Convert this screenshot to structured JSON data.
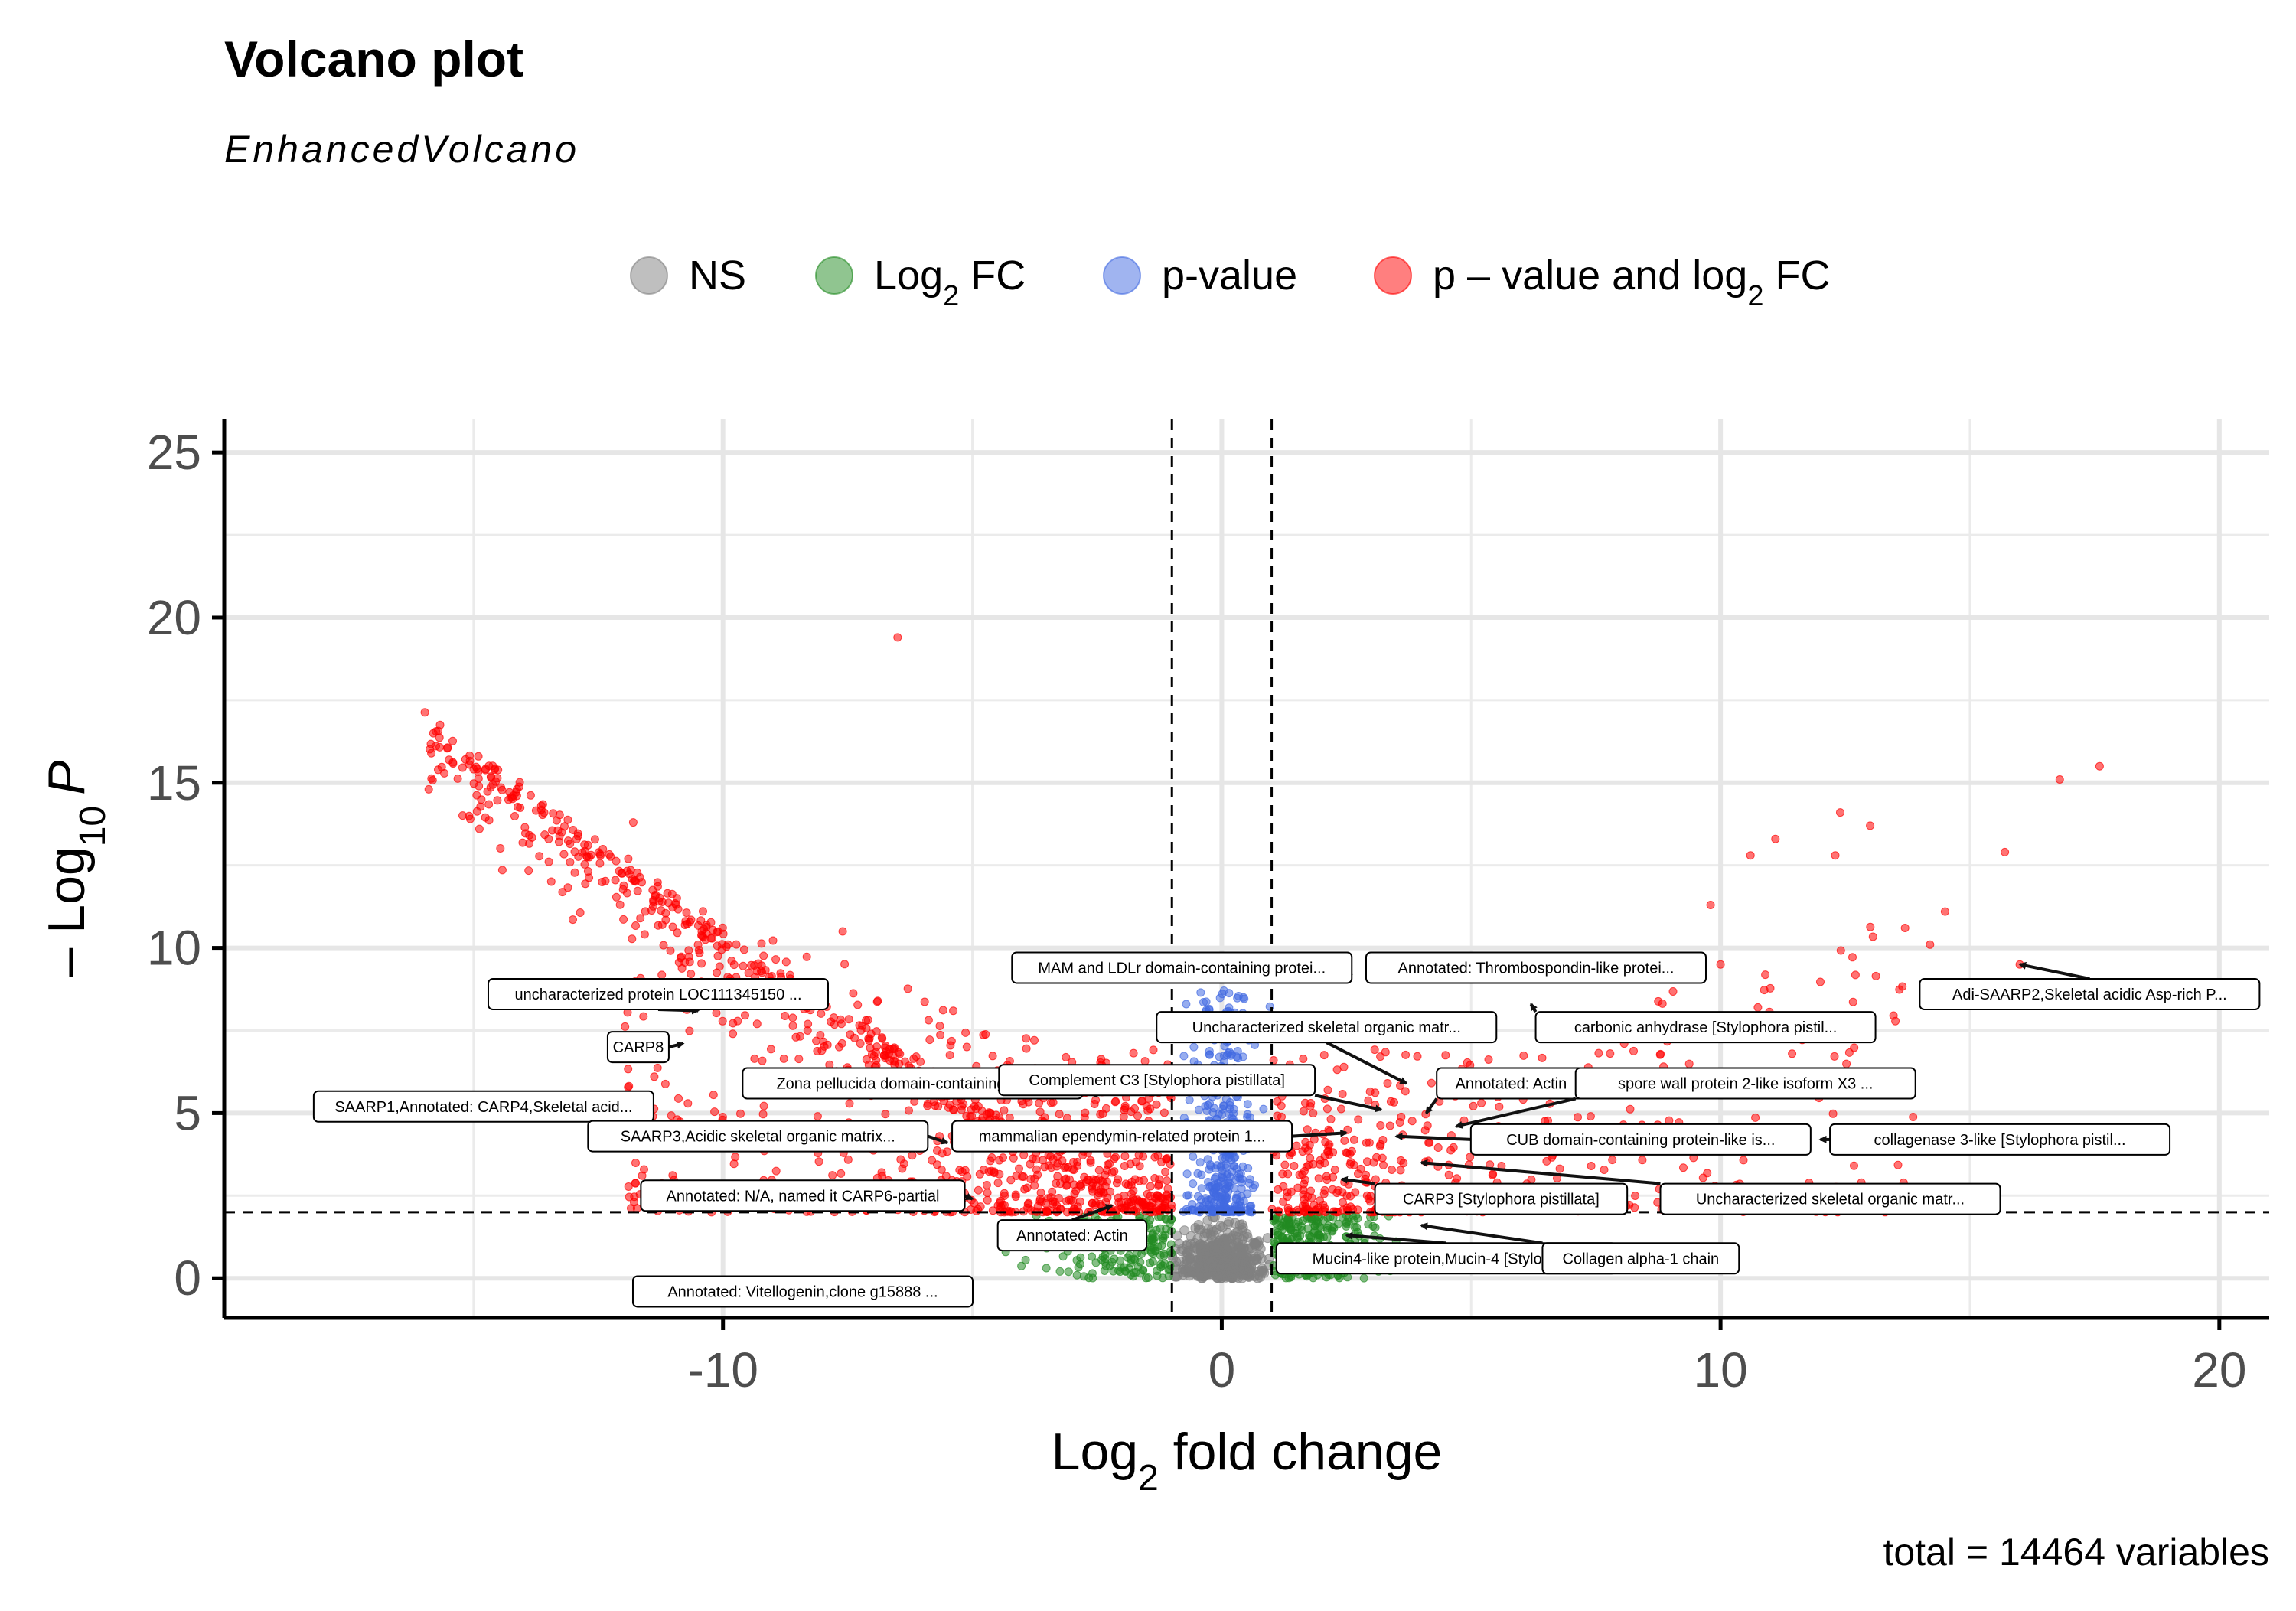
{
  "title": "Volcano plot",
  "subtitle": "EnhancedVolcano",
  "legend": [
    {
      "label": "NS",
      "color": "#808080"
    },
    {
      "label": "Log",
      "sub": "2",
      "suffix": " FC",
      "color": "#228b22"
    },
    {
      "label": "p-value",
      "color": "#4169e1"
    },
    {
      "label": "p – value and log",
      "sub": "2",
      "suffix": " FC",
      "color": "#ff0000"
    }
  ],
  "caption": "total = 14464 variables",
  "chart_data": {
    "type": "scatter",
    "xlabel": "Log",
    "xlabel_sub": "2",
    "xlabel_suffix": " fold change",
    "ylabel_prefix": "– Log",
    "ylabel_sub": "10",
    "ylabel_var": "P",
    "xlim": [
      -20,
      21
    ],
    "ylim": [
      -1.2,
      26
    ],
    "x_ticks": [
      -10,
      0,
      10,
      20
    ],
    "x_tick_labels": [
      "-10",
      "0",
      "10",
      "20"
    ],
    "y_ticks": [
      0,
      5,
      10,
      15,
      20,
      25
    ],
    "y_tick_labels": [
      "0",
      "5",
      "10",
      "15",
      "20",
      "25"
    ],
    "grid": true,
    "fc_cutoff": 1,
    "p_cutoff_log": 2,
    "total_variables": 14464,
    "series": [
      {
        "name": "NS",
        "color": "#808080"
      },
      {
        "name": "Log2 FC",
        "color": "#228b22"
      },
      {
        "name": "p-value",
        "color": "#4169e1"
      },
      {
        "name": "p – value and log2 FC",
        "color": "#ff0000"
      }
    ],
    "highlight_points": [
      {
        "x": -6.5,
        "y": 19.4
      },
      {
        "x": 17.6,
        "y": 15.5
      },
      {
        "x": 16.8,
        "y": 15.1
      },
      {
        "x": -15.9,
        "y": 14.8
      },
      {
        "x": 12.4,
        "y": 14.1
      },
      {
        "x": -11.8,
        "y": 13.8
      },
      {
        "x": 13.0,
        "y": 13.7
      },
      {
        "x": 11.1,
        "y": 13.3
      },
      {
        "x": 10.6,
        "y": 12.8
      },
      {
        "x": 12.3,
        "y": 12.8
      },
      {
        "x": 15.7,
        "y": 12.9
      },
      {
        "x": -11.9,
        "y": 12.7
      },
      {
        "x": 14.5,
        "y": 11.1
      },
      {
        "x": 14.2,
        "y": 10.1
      },
      {
        "x": 9.8,
        "y": 11.3
      },
      {
        "x": 16.0,
        "y": 9.5
      },
      {
        "x": -7.6,
        "y": 10.5
      },
      {
        "x": 10.0,
        "y": 9.5
      }
    ],
    "annotations": [
      {
        "label": "uncharacterized protein LOC111345150 ...",
        "x": -11.3,
        "y": 8.6,
        "px": -10.5,
        "py": 8.1
      },
      {
        "label": "CARP8",
        "x": -11.7,
        "y": 7.0,
        "px": -10.8,
        "py": 7.1
      },
      {
        "label": "SAARP1,Annotated: CARP4,Skeletal acid...",
        "x": -14.8,
        "y": 5.2,
        "px": -12.0,
        "py": 5.5
      },
      {
        "label": "Zona pellucida domain-containing prot...",
        "x": -6.2,
        "y": 5.9,
        "px": -2.5,
        "py": 5.5
      },
      {
        "label": "SAARP3,Acidic skeletal organic matrix...",
        "x": -9.3,
        "y": 4.3,
        "px": -5.5,
        "py": 4.1
      },
      {
        "label": "Annotated: N/A, named it CARP6-partial",
        "x": -8.4,
        "y": 2.5,
        "px": -5.0,
        "py": 2.4
      },
      {
        "label": "Annotated: Actin",
        "x": -3.0,
        "y": 1.3,
        "px": -2.2,
        "py": 2.2
      },
      {
        "label": "Annotated: Vitellogenin,clone g15888 ...",
        "x": -8.4,
        "y": -0.4,
        "px": -5.0,
        "py": -0.2
      },
      {
        "label": "MAM and LDLr domain-containing protei...",
        "x": -0.8,
        "y": 9.4,
        "px": 2.6,
        "py": 9.2
      },
      {
        "label": "Annotated: Thrombospondin-like protei...",
        "x": 6.3,
        "y": 9.4,
        "px": 5.7,
        "py": 9.0
      },
      {
        "label": "Uncharacterized skeletal organic matr...",
        "x": 2.1,
        "y": 7.6,
        "px": 3.7,
        "py": 5.9
      },
      {
        "label": "carbonic anhydrase [Stylophora pistil...",
        "x": 9.7,
        "y": 7.6,
        "px": 6.2,
        "py": 8.3
      },
      {
        "label": "Complement C3 [Stylophora pistillata]",
        "x": -1.3,
        "y": 6.0,
        "px": 3.2,
        "py": 5.1
      },
      {
        "label": "Annotated: Actin",
        "x": 5.8,
        "y": 5.9,
        "px": 4.1,
        "py": 5.0
      },
      {
        "label": "spore wall protein 2-like isoform X3 ...",
        "x": 10.5,
        "y": 5.9,
        "px": 4.7,
        "py": 4.6
      },
      {
        "label": "mammalian ependymin-related protein 1...",
        "x": -2.0,
        "y": 4.3,
        "px": 2.5,
        "py": 4.4
      },
      {
        "label": "CUB domain-containing protein-like is...",
        "x": 8.4,
        "y": 4.2,
        "px": 3.5,
        "py": 4.3
      },
      {
        "label": "collagenase 3-like [Stylophora pistil...",
        "x": 15.6,
        "y": 4.2,
        "px": 12.0,
        "py": 4.2
      },
      {
        "label": "CARP3 [Stylophora pistillata]",
        "x": 5.6,
        "y": 2.4,
        "px": 2.4,
        "py": 3.0
      },
      {
        "label": "Uncharacterized skeletal organic matr...",
        "x": 12.2,
        "y": 2.4,
        "px": 4.0,
        "py": 3.5
      },
      {
        "label": "Mucin4-like protein,Mucin-4 [Stylopho...",
        "x": 4.5,
        "y": 0.6,
        "px": 2.5,
        "py": 1.3
      },
      {
        "label": "Collagen alpha-1 chain",
        "x": 8.4,
        "y": 0.6,
        "px": 4.0,
        "py": 1.6
      },
      {
        "label": "Adi-SAARP2,Skeletal acidic Asp-rich P...",
        "x": 17.4,
        "y": 8.6,
        "px": 16.0,
        "py": 9.5
      }
    ]
  }
}
